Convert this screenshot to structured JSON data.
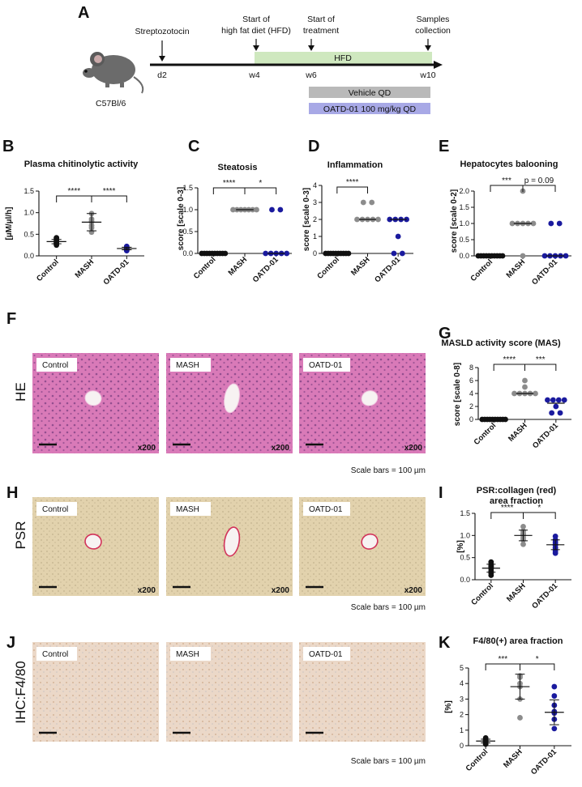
{
  "panel_letters": {
    "A": "A",
    "B": "B",
    "C": "C",
    "D": "D",
    "E": "E",
    "F": "F",
    "G": "G",
    "H": "H",
    "I": "I",
    "J": "J",
    "K": "K"
  },
  "timeline": {
    "mouse_label": "C57Bl/6",
    "events": [
      {
        "label1": "Streptozotocin",
        "label2": "",
        "tick": "d2"
      },
      {
        "label1": "Start of",
        "label2": "high fat diet (HFD)",
        "tick": "w4"
      },
      {
        "label1": "Start of",
        "label2": "treatment",
        "tick": "w6"
      },
      {
        "label1": "Samples",
        "label2": "collection",
        "tick": "w10"
      }
    ],
    "hfd_bar": "HFD",
    "vehicle_bar": "Vehicle QD",
    "oatd_bar": "OATD-01 100 mg/kg QD",
    "colors": {
      "hfd": "#cfe8bf",
      "vehicle": "#b9b9b9",
      "oatd": "#a8a9e6"
    }
  },
  "micrographs": {
    "groups": [
      "Control",
      "MASH",
      "OATD-01"
    ],
    "magnification": "x200",
    "scale_note": "Scale bars = 100 µm",
    "rows": [
      {
        "row_label": "HE",
        "tint": "#d97ab8"
      },
      {
        "row_label": "PSR",
        "tint": "#e2d2ad"
      },
      {
        "row_label": "IHC:F4/80",
        "tint": "#ebd8c8"
      }
    ]
  },
  "chart_data": [
    {
      "panel": "B",
      "type": "scatter",
      "title": "Plasma chitinolytic activity",
      "ylabel": "[µM/µl/h]",
      "categories": [
        "Control",
        "MASH",
        "OATD-01"
      ],
      "yticks": [
        "0.0",
        "0.5",
        "1.0",
        "1.5"
      ],
      "ylim": [
        0,
        1.5
      ],
      "series": [
        {
          "values": [
            0.25,
            0.27,
            0.29,
            0.3,
            0.31,
            0.33,
            0.35,
            0.37,
            0.4,
            0.42
          ],
          "mean": 0.33,
          "sd": 0.05
        },
        {
          "values": [
            0.55,
            0.65,
            0.7,
            0.78,
            0.8,
            0.85,
            0.98
          ],
          "mean": 0.78,
          "sd": 0.2
        },
        {
          "values": [
            0.12,
            0.15,
            0.16,
            0.17,
            0.18,
            0.2,
            0.22
          ],
          "mean": 0.17,
          "sd": 0.03
        }
      ],
      "significance": [
        {
          "from": 0,
          "to": 1,
          "label": "****"
        },
        {
          "from": 1,
          "to": 2,
          "label": "****"
        }
      ]
    },
    {
      "panel": "C",
      "type": "scatter",
      "title": "Steatosis",
      "ylabel": "score [scale 0-3]",
      "categories": [
        "Control",
        "MASH",
        "OATD-01"
      ],
      "yticks": [
        "0.0",
        "0.5",
        "1.0",
        "1.5"
      ],
      "ylim": [
        0,
        1.5
      ],
      "series": [
        {
          "values": [
            0,
            0,
            0,
            0,
            0,
            0,
            0,
            0,
            0,
            0
          ],
          "mean": 0
        },
        {
          "values": [
            1,
            1,
            1,
            1,
            1,
            1,
            1
          ],
          "mean": 1
        },
        {
          "values": [
            1,
            1,
            0,
            0,
            0,
            0,
            0
          ],
          "mean": 0
        }
      ],
      "significance": [
        {
          "from": 0,
          "to": 1,
          "label": "****"
        },
        {
          "from": 1,
          "to": 2,
          "label": "*"
        }
      ]
    },
    {
      "panel": "D",
      "type": "scatter",
      "title": "Inflammation",
      "ylabel": "score [scale 0-3]",
      "categories": [
        "Control",
        "MASH",
        "OATD-01"
      ],
      "yticks": [
        "0",
        "1",
        "2",
        "3",
        "4"
      ],
      "ylim": [
        0,
        4
      ],
      "series": [
        {
          "values": [
            0,
            0,
            0,
            0,
            0,
            0,
            0,
            0,
            0,
            0
          ],
          "mean": 0
        },
        {
          "values": [
            3,
            3,
            2,
            2,
            2,
            2,
            2
          ],
          "mean": 2
        },
        {
          "values": [
            2,
            2,
            2,
            2,
            1,
            0,
            0
          ],
          "mean": 2
        }
      ],
      "significance": [
        {
          "from": 0,
          "to": 1,
          "label": "****"
        }
      ]
    },
    {
      "panel": "E",
      "type": "scatter",
      "title": "Hepatocytes balooning",
      "ylabel": "score [scale 0-2]",
      "categories": [
        "Control",
        "MASH",
        "OATD-01"
      ],
      "yticks": [
        "0.0",
        "0.5",
        "1.0",
        "1.5",
        "2.0"
      ],
      "ylim": [
        0,
        2.0
      ],
      "series": [
        {
          "values": [
            0,
            0,
            0,
            0,
            0,
            0,
            0,
            0,
            0,
            0
          ],
          "mean": 0
        },
        {
          "values": [
            2,
            1,
            1,
            1,
            1,
            1,
            0
          ],
          "mean": 1
        },
        {
          "values": [
            1,
            1,
            0,
            0,
            0,
            0,
            0
          ],
          "mean": 0
        }
      ],
      "significance": [
        {
          "from": 0,
          "to": 1,
          "label": "***"
        },
        {
          "from": 1,
          "to": 2,
          "label": "p = 0.09"
        }
      ]
    },
    {
      "panel": "G",
      "type": "scatter",
      "title": "MASLD activity score (MAS)",
      "ylabel": "score [scale 0-8]",
      "categories": [
        "Control",
        "MASH",
        "OATD-01"
      ],
      "yticks": [
        "0",
        "2",
        "4",
        "6",
        "8"
      ],
      "ylim": [
        0,
        8
      ],
      "series": [
        {
          "values": [
            0,
            0,
            0,
            0,
            0,
            0,
            0,
            0,
            0,
            0
          ],
          "mean": 0
        },
        {
          "values": [
            6,
            5,
            4,
            4,
            4,
            4,
            4
          ],
          "mean": 4
        },
        {
          "values": [
            3,
            3,
            3,
            3,
            2,
            1,
            1
          ],
          "mean": 2.5
        }
      ],
      "significance": [
        {
          "from": 0,
          "to": 1,
          "label": "****"
        },
        {
          "from": 1,
          "to": 2,
          "label": "***"
        }
      ]
    },
    {
      "panel": "I",
      "type": "scatter",
      "title": "PSR:collagen (red)",
      "title2": "area fraction",
      "ylabel": "[%]",
      "categories": [
        "Control",
        "MASH",
        "OATD-01"
      ],
      "yticks": [
        "0.0",
        "0.5",
        "1.0",
        "1.5"
      ],
      "ylim": [
        0,
        1.5
      ],
      "series": [
        {
          "values": [
            0.1,
            0.15,
            0.2,
            0.25,
            0.28,
            0.3,
            0.32,
            0.35,
            0.4
          ],
          "mean": 0.26,
          "sd": 0.09
        },
        {
          "values": [
            0.8,
            0.9,
            0.95,
            1.0,
            1.02,
            1.05,
            1.1,
            1.2
          ],
          "mean": 1.0,
          "sd": 0.12
        },
        {
          "values": [
            0.6,
            0.65,
            0.72,
            0.78,
            0.8,
            0.85,
            0.9,
            0.98
          ],
          "mean": 0.79,
          "sd": 0.11
        }
      ],
      "significance": [
        {
          "from": 0,
          "to": 1,
          "label": "****"
        },
        {
          "from": 1,
          "to": 2,
          "label": "*"
        }
      ]
    },
    {
      "panel": "K",
      "type": "scatter",
      "title": "F4/80(+) area fraction",
      "ylabel": "[%]",
      "categories": [
        "Control",
        "MASH",
        "OATD-01"
      ],
      "yticks": [
        "0",
        "1",
        "2",
        "3",
        "4",
        "5"
      ],
      "ylim": [
        0,
        5
      ],
      "series": [
        {
          "values": [
            0.1,
            0.15,
            0.2,
            0.25,
            0.3,
            0.35,
            0.4,
            0.45,
            0.5
          ],
          "mean": 0.3,
          "sd": 0.12
        },
        {
          "values": [
            1.8,
            3.0,
            3.8,
            4.0,
            4.4,
            4.5
          ],
          "mean": 3.8,
          "sd": 0.8
        },
        {
          "values": [
            1.1,
            1.7,
            2.1,
            2.2,
            2.6,
            3.2,
            3.8
          ],
          "mean": 2.15,
          "sd": 0.8
        }
      ],
      "significance": [
        {
          "from": 0,
          "to": 1,
          "label": "***"
        },
        {
          "from": 1,
          "to": 2,
          "label": "*"
        }
      ]
    }
  ],
  "colors": {
    "control": "#111111",
    "mash": "#8c8c8c",
    "oatd": "#1a1a9e"
  }
}
